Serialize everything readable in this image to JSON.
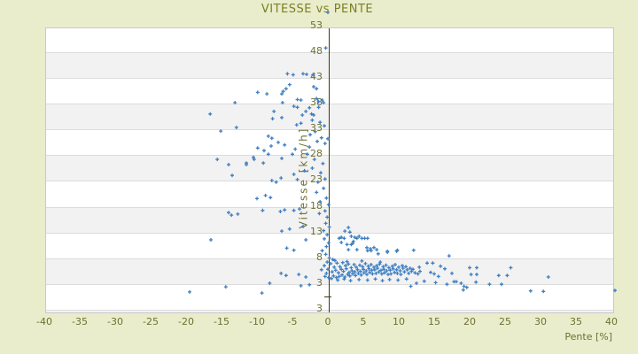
{
  "title": "VITESSE vs PENTE",
  "colors": {
    "page_bg": "#e9edcc",
    "plot_bg": "#ffffff",
    "band_gray": "#f2f2f2",
    "gridline": "#dcdcdc",
    "plot_border": "#c9c9c9",
    "axis_line": "#3b3d0e",
    "tick_text": "#6e7030",
    "title_text": "#7c7e22",
    "marker": "#3f7fc1"
  },
  "chart_data": {
    "type": "scatter",
    "title": "VITESSE vs PENTE",
    "xlabel": "Pente [%]",
    "ylabel": "Vitesse [km/h]",
    "xlim": [
      -40,
      40
    ],
    "ylim": [
      -2,
      53
    ],
    "x_ticks": [
      -40,
      -35,
      -30,
      -25,
      -20,
      -15,
      -10,
      -5,
      0,
      5,
      10,
      15,
      20,
      25,
      30,
      35,
      40
    ],
    "y_tick_labels": [
      "53",
      "48",
      "43",
      "38",
      "33",
      "28",
      "23",
      "18",
      "13",
      "8",
      "3",
      "3"
    ],
    "grid": "horizontal-bands-alternating",
    "legend": "none",
    "marker": "plus",
    "points": [
      [
        0,
        55.5
      ],
      [
        -0.3,
        48.6
      ],
      [
        -5.7,
        43.6
      ],
      [
        -4.9,
        43.4
      ],
      [
        -3.5,
        43.6
      ],
      [
        -3,
        43.5
      ],
      [
        -2.1,
        43.4
      ],
      [
        -2,
        41.1
      ],
      [
        -1.6,
        40.7
      ],
      [
        -5.4,
        41.5
      ],
      [
        -6.3,
        40.2
      ],
      [
        -5.9,
        40.7
      ],
      [
        -4.3,
        38.6
      ],
      [
        -3.8,
        38.5
      ],
      [
        -1.6,
        38.8
      ],
      [
        -1.3,
        38.2
      ],
      [
        -0.8,
        38.5
      ],
      [
        -4.8,
        37.3
      ],
      [
        -4.3,
        37.1
      ],
      [
        -2.6,
        37
      ],
      [
        -3.1,
        36.3
      ],
      [
        -3.6,
        35.6
      ],
      [
        -2.3,
        35.8
      ],
      [
        -2,
        35.6
      ],
      [
        -1.3,
        37.1
      ],
      [
        -0.6,
        38
      ],
      [
        -4.4,
        33.7
      ],
      [
        -3.8,
        34
      ],
      [
        -2.2,
        34.6
      ],
      [
        -16.6,
        35.8
      ],
      [
        -15.1,
        32.5
      ],
      [
        -13.1,
        38
      ],
      [
        -12.9,
        33.2
      ],
      [
        -9.9,
        40
      ],
      [
        -8.6,
        39.7
      ],
      [
        -6.5,
        39.7
      ],
      [
        -6.4,
        38
      ],
      [
        -7.6,
        36.3
      ],
      [
        -7.8,
        34.9
      ],
      [
        -6.5,
        35.1
      ],
      [
        -15.6,
        27
      ],
      [
        -8.4,
        31.5
      ],
      [
        -7.9,
        31.1
      ],
      [
        -7,
        30.3
      ],
      [
        -9,
        28.7
      ],
      [
        -10.5,
        27.4
      ],
      [
        -11.5,
        26.3
      ],
      [
        -13.5,
        23.9
      ],
      [
        -6.5,
        27.2
      ],
      [
        -14,
        26
      ],
      [
        -11.5,
        26
      ],
      [
        -10.4,
        27
      ],
      [
        -9.1,
        26.3
      ],
      [
        -9.9,
        29.2
      ],
      [
        -8.4,
        28
      ],
      [
        -8,
        29.6
      ],
      [
        -6.1,
        29.8
      ],
      [
        -5,
        28
      ],
      [
        -4.6,
        29
      ],
      [
        -2.9,
        28
      ],
      [
        -2.6,
        29.4
      ],
      [
        -1.5,
        30.5
      ],
      [
        -0.9,
        31.2
      ],
      [
        -1.8,
        32.4
      ],
      [
        -2.5,
        31.8
      ],
      [
        -0.5,
        33.5
      ],
      [
        -1.1,
        34.2
      ],
      [
        -0.4,
        30.1
      ],
      [
        -1.9,
        27
      ],
      [
        -0.7,
        26.2
      ],
      [
        -2.2,
        25.3
      ],
      [
        -1,
        24.4
      ],
      [
        -0.4,
        23.2
      ],
      [
        -1.4,
        22.6
      ],
      [
        -3.3,
        24.8
      ],
      [
        -0.6,
        21.4
      ],
      [
        -1.6,
        20.6
      ],
      [
        -7.9,
        22.9
      ],
      [
        -7.3,
        22.6
      ],
      [
        -6.6,
        23.4
      ],
      [
        -4.8,
        24.1
      ],
      [
        -4.3,
        23.1
      ],
      [
        -8.1,
        19.6
      ],
      [
        -10,
        19.4
      ],
      [
        -8.8,
        20
      ],
      [
        -12.7,
        16.4
      ],
      [
        -14,
        16.7
      ],
      [
        -13.6,
        16.2
      ],
      [
        -9.2,
        17.1
      ],
      [
        -6.7,
        16.9
      ],
      [
        -6.1,
        17.2
      ],
      [
        -4.8,
        17.1
      ],
      [
        -4,
        17.4
      ],
      [
        -6.5,
        13.1
      ],
      [
        -5.4,
        13.5
      ],
      [
        -3.5,
        14
      ],
      [
        -16.5,
        11.4
      ],
      [
        -4.8,
        9.4
      ],
      [
        -3.1,
        11.4
      ],
      [
        -5.8,
        9.8
      ],
      [
        0,
        31
      ],
      [
        -0.2,
        19.5
      ],
      [
        0.1,
        18.2
      ],
      [
        -0.4,
        17
      ],
      [
        -0.1,
        15.8
      ],
      [
        -0.3,
        14.6
      ],
      [
        0.2,
        13.9
      ],
      [
        -0.6,
        13.2
      ],
      [
        -0.1,
        12.4
      ],
      [
        -0.5,
        11.6
      ],
      [
        0.1,
        10.8
      ],
      [
        -0.2,
        10.1
      ],
      [
        -0.8,
        9.3
      ],
      [
        -0.3,
        8.6
      ],
      [
        0.2,
        7.9
      ],
      [
        -0.1,
        7.1
      ],
      [
        -0.5,
        6.4
      ],
      [
        0,
        5.7
      ],
      [
        -0.2,
        4.9
      ],
      [
        -0.4,
        4.3
      ],
      [
        0.1,
        4.1
      ],
      [
        -0.9,
        5.6
      ],
      [
        -1.2,
        16.5
      ],
      [
        -1.1,
        18.8
      ],
      [
        -19.5,
        1.3
      ],
      [
        -14.4,
        2.3
      ],
      [
        -9.3,
        1.1
      ],
      [
        -8.2,
        3
      ],
      [
        -6.6,
        4.9
      ],
      [
        -5.9,
        4.5
      ],
      [
        -3.1,
        4.2
      ],
      [
        -4.1,
        4.7
      ],
      [
        -3.8,
        2.5
      ],
      [
        -2.6,
        2.7
      ],
      [
        2.9,
        13.8
      ],
      [
        2.4,
        13.1
      ],
      [
        3.1,
        12.9
      ],
      [
        1.9,
        11.9
      ],
      [
        1.6,
        11.7
      ],
      [
        2.3,
        11.7
      ],
      [
        3.3,
        12.1
      ],
      [
        3.8,
        11.9
      ],
      [
        4.1,
        11.7
      ],
      [
        4.4,
        12.1
      ],
      [
        4.8,
        11.7
      ],
      [
        5.2,
        11.7
      ],
      [
        5.6,
        11.7
      ],
      [
        3.3,
        10.5
      ],
      [
        3.5,
        10.7
      ],
      [
        2.9,
        9.5
      ],
      [
        5.6,
        9.3
      ],
      [
        6,
        9.7
      ],
      [
        6.5,
        9.9
      ],
      [
        6.9,
        9.5
      ],
      [
        8.4,
        9.2
      ],
      [
        9.8,
        9.4
      ],
      [
        12.1,
        9.4
      ],
      [
        1.9,
        10.9
      ],
      [
        2.7,
        10.5
      ],
      [
        3.6,
        11.1
      ],
      [
        4.1,
        9.5
      ],
      [
        5.5,
        9.9
      ],
      [
        6.1,
        9.3
      ],
      [
        7.1,
        8.7
      ],
      [
        8.4,
        9
      ],
      [
        9.7,
        9.2
      ],
      [
        17.1,
        8.3
      ],
      [
        0.4,
        6.8
      ],
      [
        0.6,
        5.2
      ],
      [
        0.8,
        4.4
      ],
      [
        0.9,
        6.1
      ],
      [
        1.1,
        5.5
      ],
      [
        1.2,
        4.1
      ],
      [
        1.3,
        6.9
      ],
      [
        1.5,
        5
      ],
      [
        1.6,
        4.3
      ],
      [
        1.7,
        6.2
      ],
      [
        1.9,
        5.7
      ],
      [
        2,
        4.6
      ],
      [
        2.1,
        7
      ],
      [
        2.2,
        5.3
      ],
      [
        2.4,
        4.2
      ],
      [
        2.5,
        6.4
      ],
      [
        2.6,
        5.8
      ],
      [
        2.8,
        4.7
      ],
      [
        2.9,
        6.7
      ],
      [
        3,
        5.1
      ],
      [
        3.1,
        4.4
      ],
      [
        3.3,
        6
      ],
      [
        3.4,
        5.4
      ],
      [
        3.5,
        4.8
      ],
      [
        3.7,
        6.6
      ],
      [
        3.8,
        5.2
      ],
      [
        3.9,
        4.5
      ],
      [
        4,
        6.1
      ],
      [
        4.2,
        5.6
      ],
      [
        4.3,
        4.9
      ],
      [
        4.5,
        6.5
      ],
      [
        4.6,
        5.3
      ],
      [
        4.7,
        4.6
      ],
      [
        4.9,
        6.2
      ],
      [
        5,
        5.7
      ],
      [
        5.1,
        5
      ],
      [
        5.3,
        6.8
      ],
      [
        5.4,
        5.4
      ],
      [
        5.5,
        4.7
      ],
      [
        5.7,
        6.3
      ],
      [
        5.8,
        5.8
      ],
      [
        5.9,
        5.1
      ],
      [
        6.1,
        6.6
      ],
      [
        6.2,
        5.5
      ],
      [
        6.3,
        4.8
      ],
      [
        6.5,
        6.1
      ],
      [
        6.6,
        5.6
      ],
      [
        6.8,
        4.9
      ],
      [
        6.9,
        6.4
      ],
      [
        7,
        5.9
      ],
      [
        7.2,
        5.2
      ],
      [
        7.3,
        6.7
      ],
      [
        7.5,
        5.5
      ],
      [
        7.6,
        4.8
      ],
      [
        7.8,
        6.2
      ],
      [
        7.9,
        5.7
      ],
      [
        8,
        5
      ],
      [
        8.2,
        6.5
      ],
      [
        8.3,
        5.4
      ],
      [
        8.5,
        4.7
      ],
      [
        8.6,
        6
      ],
      [
        8.8,
        5.5
      ],
      [
        8.9,
        4.8
      ],
      [
        9.1,
        6.3
      ],
      [
        9.2,
        5.8
      ],
      [
        9.4,
        5.1
      ],
      [
        9.5,
        6.6
      ],
      [
        9.7,
        5.6
      ],
      [
        9.8,
        4.9
      ],
      [
        10,
        6.1
      ],
      [
        10.2,
        5.4
      ],
      [
        10.3,
        4.7
      ],
      [
        10.5,
        6.4
      ],
      [
        10.6,
        5.9
      ],
      [
        10.8,
        5.2
      ],
      [
        11,
        6.2
      ],
      [
        11.2,
        5.6
      ],
      [
        11.4,
        4.9
      ],
      [
        11.6,
        5.9
      ],
      [
        11.8,
        5.3
      ],
      [
        12,
        5.7
      ],
      [
        12.3,
        5
      ],
      [
        0.5,
        3.9
      ],
      [
        1.4,
        3.6
      ],
      [
        2.3,
        3.8
      ],
      [
        3.2,
        3.5
      ],
      [
        4.4,
        3.7
      ],
      [
        5.6,
        3.6
      ],
      [
        6.7,
        3.8
      ],
      [
        7.7,
        3.5
      ],
      [
        8.7,
        3.7
      ],
      [
        9.9,
        3.6
      ],
      [
        11.1,
        3.8
      ],
      [
        1,
        7.4
      ],
      [
        2.7,
        7.2
      ],
      [
        4.8,
        7.3
      ],
      [
        7.4,
        7.1
      ],
      [
        0.7,
        7.6
      ],
      [
        14,
        6.9
      ],
      [
        14.8,
        6.9
      ],
      [
        12.9,
        6.1
      ],
      [
        13,
        5.3
      ],
      [
        12.7,
        4.8
      ],
      [
        14.5,
        5.1
      ],
      [
        15,
        4.8
      ],
      [
        15.6,
        4.3
      ],
      [
        15.9,
        6.3
      ],
      [
        16.5,
        5.8
      ],
      [
        17.5,
        4.9
      ],
      [
        17.8,
        3.3
      ],
      [
        18.1,
        3.3
      ],
      [
        16.8,
        2.8
      ],
      [
        18.8,
        3
      ],
      [
        19.1,
        1.7
      ],
      [
        19.6,
        2.2
      ],
      [
        20,
        6
      ],
      [
        20.2,
        4.7
      ],
      [
        21,
        6
      ],
      [
        21,
        4.7
      ],
      [
        22.8,
        2.8
      ],
      [
        24.1,
        4.5
      ],
      [
        24.5,
        2.8
      ],
      [
        25.3,
        4.5
      ],
      [
        25.8,
        6
      ],
      [
        28.6,
        1.5
      ],
      [
        30.4,
        1.4
      ],
      [
        31.1,
        4.2
      ],
      [
        40.5,
        1.6
      ],
      [
        11.7,
        2.4
      ],
      [
        12.5,
        3
      ],
      [
        19.2,
        2.4
      ],
      [
        20.9,
        3.2
      ],
      [
        13.6,
        3.4
      ],
      [
        15.2,
        3.1
      ]
    ]
  }
}
